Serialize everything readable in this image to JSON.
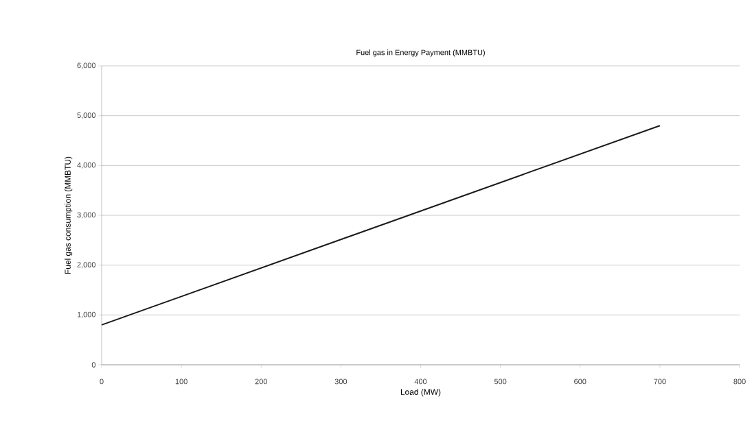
{
  "chart_data": {
    "type": "line",
    "title": "Fuel gas in Energy Payment (MMBTU)",
    "xlabel": "Load (MW)",
    "ylabel": "Fuel gas consumption (MMBTU)",
    "x": [
      0,
      700
    ],
    "series": [
      {
        "color": "#1a1a1a",
        "values": [
          800,
          4800
        ]
      }
    ],
    "xlim": [
      0,
      800
    ],
    "xticks": [
      0,
      100,
      200,
      300,
      400,
      500,
      600,
      700,
      800
    ],
    "ylim": [
      0,
      6000
    ],
    "yticks": [
      0,
      {
        "value": 1000,
        "label": "1,000"
      },
      {
        "value": 2000,
        "label": "2,000"
      },
      {
        "value": 3000,
        "label": "3,000"
      },
      {
        "value": 4000,
        "label": "4,000"
      },
      {
        "value": 5000,
        "label": "5,000"
      },
      {
        "value": 6000,
        "label": "6,000"
      }
    ],
    "grid": "y",
    "marker": "none",
    "line_style": "solid"
  }
}
